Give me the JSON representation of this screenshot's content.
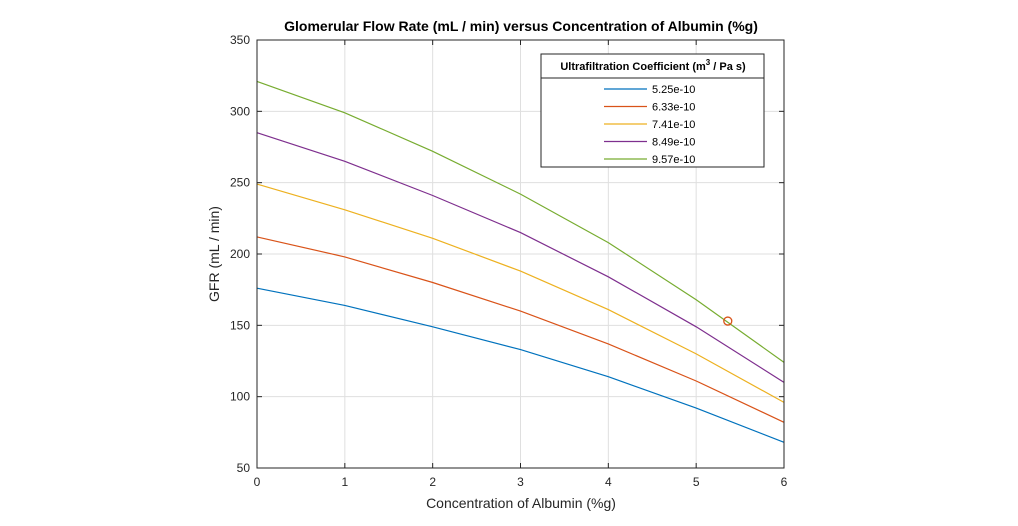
{
  "chart_data": {
    "type": "line",
    "title": "Glomerular Flow Rate (mL / min) versus Concentration of Albumin (%g)",
    "xlabel": "Concentration of Albumin (%g)",
    "ylabel": "GFR (mL / min)",
    "xlim": [
      0,
      6
    ],
    "ylim": [
      50,
      350
    ],
    "xticks": [
      "0",
      "1",
      "2",
      "3",
      "4",
      "5",
      "6"
    ],
    "yticks": [
      "50",
      "100",
      "150",
      "200",
      "250",
      "300",
      "350"
    ],
    "grid": true,
    "legend": {
      "title_prefix": "Ultrafiltration Coefficient (m",
      "title_sup": "3",
      "title_suffix": " / Pa s)",
      "placement": "top-right"
    },
    "x": [
      0,
      1,
      2,
      3,
      4,
      5,
      6
    ],
    "series": [
      {
        "name": "5.25e-10",
        "color": "#0072BD",
        "values": [
          176,
          164,
          149,
          133,
          114,
          92,
          68
        ]
      },
      {
        "name": "6.33e-10",
        "color": "#D95319",
        "values": [
          212,
          198,
          180,
          160,
          137,
          111,
          82
        ]
      },
      {
        "name": "7.41e-10",
        "color": "#EDB120",
        "values": [
          249,
          231,
          211,
          188,
          161,
          130,
          96
        ]
      },
      {
        "name": "8.49e-10",
        "color": "#7E2F8E",
        "values": [
          285,
          265,
          241,
          215,
          184,
          149,
          110
        ]
      },
      {
        "name": "9.57e-10",
        "color": "#77AC30",
        "values": [
          321,
          299,
          272,
          242,
          208,
          168,
          124
        ]
      }
    ],
    "marker": {
      "x": 5.36,
      "y": 153,
      "color": "#D95319"
    }
  }
}
